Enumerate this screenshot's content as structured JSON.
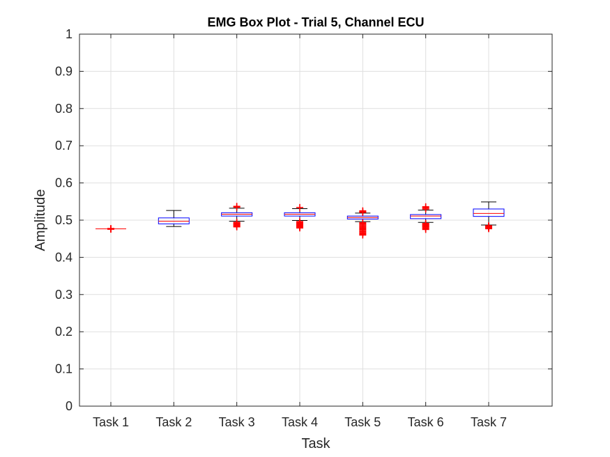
{
  "chart_data": {
    "type": "box",
    "title": "EMG Box Plot - Trial 5, Channel ECU",
    "xlabel": "Task",
    "ylabel": "Amplitude",
    "ylim": [
      0,
      1
    ],
    "yticks": [
      0,
      0.1,
      0.2,
      0.3,
      0.4,
      0.5,
      0.6,
      0.7,
      0.8,
      0.9,
      1
    ],
    "ytick_labels": [
      "0",
      "0.1",
      "0.2",
      "0.3",
      "0.4",
      "0.5",
      "0.6",
      "0.7",
      "0.8",
      "0.9",
      "1"
    ],
    "grid": true,
    "categories": [
      "Task 1",
      "Task 2",
      "Task 3",
      "Task 4",
      "Task 5",
      "Task 6",
      "Task 7"
    ],
    "boxes": [
      {
        "category": "Task 1",
        "whisker_low": 0.4765,
        "q1": 0.4765,
        "median": 0.4765,
        "q3": 0.4765,
        "whisker_high": 0.4765,
        "outliers": [
          0.4755,
          0.4765,
          0.4775
        ]
      },
      {
        "category": "Task 2",
        "whisker_low": 0.483,
        "q1": 0.49,
        "median": 0.497,
        "q3": 0.506,
        "whisker_high": 0.526,
        "outliers": []
      },
      {
        "category": "Task 3",
        "whisker_low": 0.497,
        "q1": 0.511,
        "median": 0.516,
        "q3": 0.52,
        "whisker_high": 0.532,
        "outliers": [
          0.535,
          0.537,
          0.494,
          0.492,
          0.49,
          0.488,
          0.486,
          0.484,
          0.482
        ]
      },
      {
        "category": "Task 4",
        "whisker_low": 0.499,
        "q1": 0.511,
        "median": 0.516,
        "q3": 0.52,
        "whisker_high": 0.531,
        "outliers": [
          0.534,
          0.496,
          0.494,
          0.492,
          0.49,
          0.488,
          0.486,
          0.484,
          0.482,
          0.479
        ]
      },
      {
        "category": "Task 5",
        "whisker_low": 0.496,
        "q1": 0.503,
        "median": 0.507,
        "q3": 0.511,
        "whisker_high": 0.519,
        "outliers": [
          0.521,
          0.523,
          0.525,
          0.493,
          0.49,
          0.487,
          0.484,
          0.481,
          0.478,
          0.475,
          0.472,
          0.469,
          0.466,
          0.463,
          0.46
        ]
      },
      {
        "category": "Task 6",
        "whisker_low": 0.494,
        "q1": 0.504,
        "median": 0.511,
        "q3": 0.515,
        "whisker_high": 0.527,
        "outliers": [
          0.53,
          0.533,
          0.536,
          0.491,
          0.489,
          0.487,
          0.485,
          0.483,
          0.481,
          0.478,
          0.475
        ]
      },
      {
        "category": "Task 7",
        "whisker_low": 0.487,
        "q1": 0.51,
        "median": 0.518,
        "q3": 0.53,
        "whisker_high": 0.549,
        "outliers": [
          0.485,
          0.483,
          0.481,
          0.479,
          0.477
        ]
      }
    ],
    "colors": {
      "box": "#0000ff",
      "median": "#ff0000",
      "whisker": "#000000",
      "outlier": "#ff0000",
      "grid": "#dfdfdf",
      "axis": "#262626"
    }
  }
}
